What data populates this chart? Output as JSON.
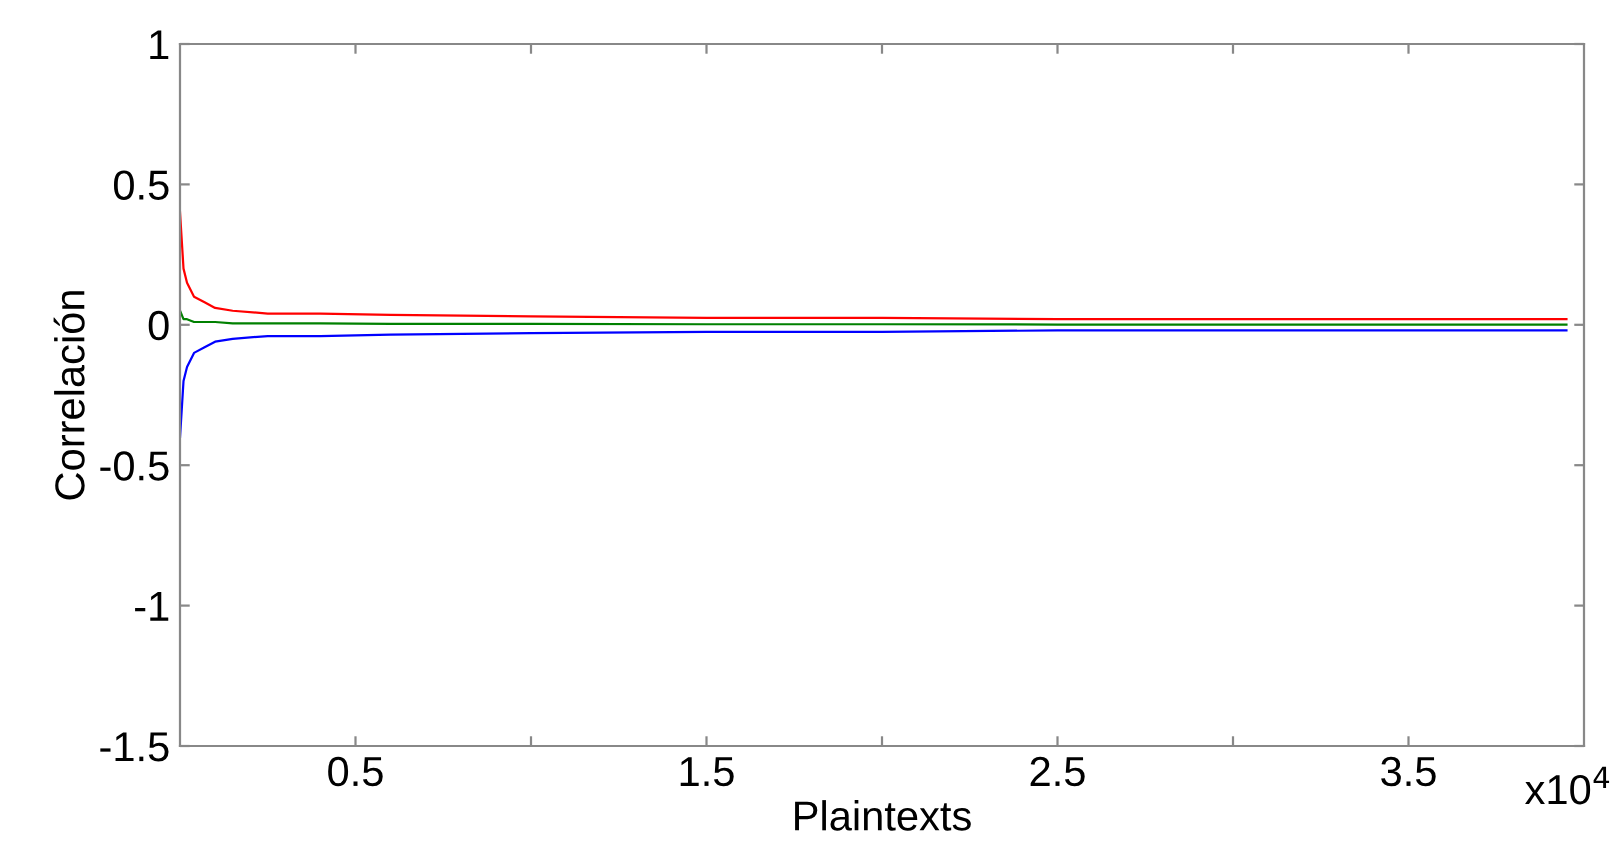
{
  "chart_data": {
    "type": "line",
    "xlabel": "Plaintexts",
    "ylabel": "Correlación",
    "x": [
      0.0001,
      0.01,
      0.02,
      0.04,
      0.07,
      0.1,
      0.15,
      0.25,
      0.4,
      0.6,
      1,
      1.5,
      2,
      2.5,
      3,
      3.5,
      3.95
    ],
    "series": [
      {
        "color": "#ff0000",
        "values": [
          0.4,
          0.2,
          0.15,
          0.1,
          0.08,
          0.06,
          0.05,
          0.04,
          0.04,
          0.035,
          0.03,
          0.025,
          0.025,
          0.02,
          0.02,
          0.02,
          0.02
        ]
      },
      {
        "color": "#0000ff",
        "values": [
          -0.4,
          -0.2,
          -0.15,
          -0.1,
          -0.08,
          -0.06,
          -0.05,
          -0.04,
          -0.04,
          -0.035,
          -0.03,
          -0.025,
          -0.025,
          -0.02,
          -0.02,
          -0.02,
          -0.02
        ]
      },
      {
        "color": "#008000",
        "values": [
          0.05,
          0.02,
          0.02,
          0.01,
          0.01,
          0.01,
          0.005,
          0.005,
          0.005,
          0.003,
          0.003,
          0.002,
          0.002,
          0.001,
          0.001,
          0.001,
          0.001
        ]
      }
    ],
    "xlim": [
      0,
      4
    ],
    "xticks": [
      0.5,
      {
        "value": 1,
        "label": null
      },
      1.5,
      {
        "value": 2,
        "label": null
      },
      2.5,
      {
        "value": 3,
        "label": null
      },
      3.5
    ],
    "ylim": [
      -1.5,
      1
    ],
    "yticks": [
      -1.5,
      -1,
      -0.5,
      0,
      0.5,
      1
    ],
    "annotations": [
      "x10$^{4}$"
    ],
    "grid": false,
    "legend": false,
    "marker": "none",
    "line_style": "solid"
  }
}
